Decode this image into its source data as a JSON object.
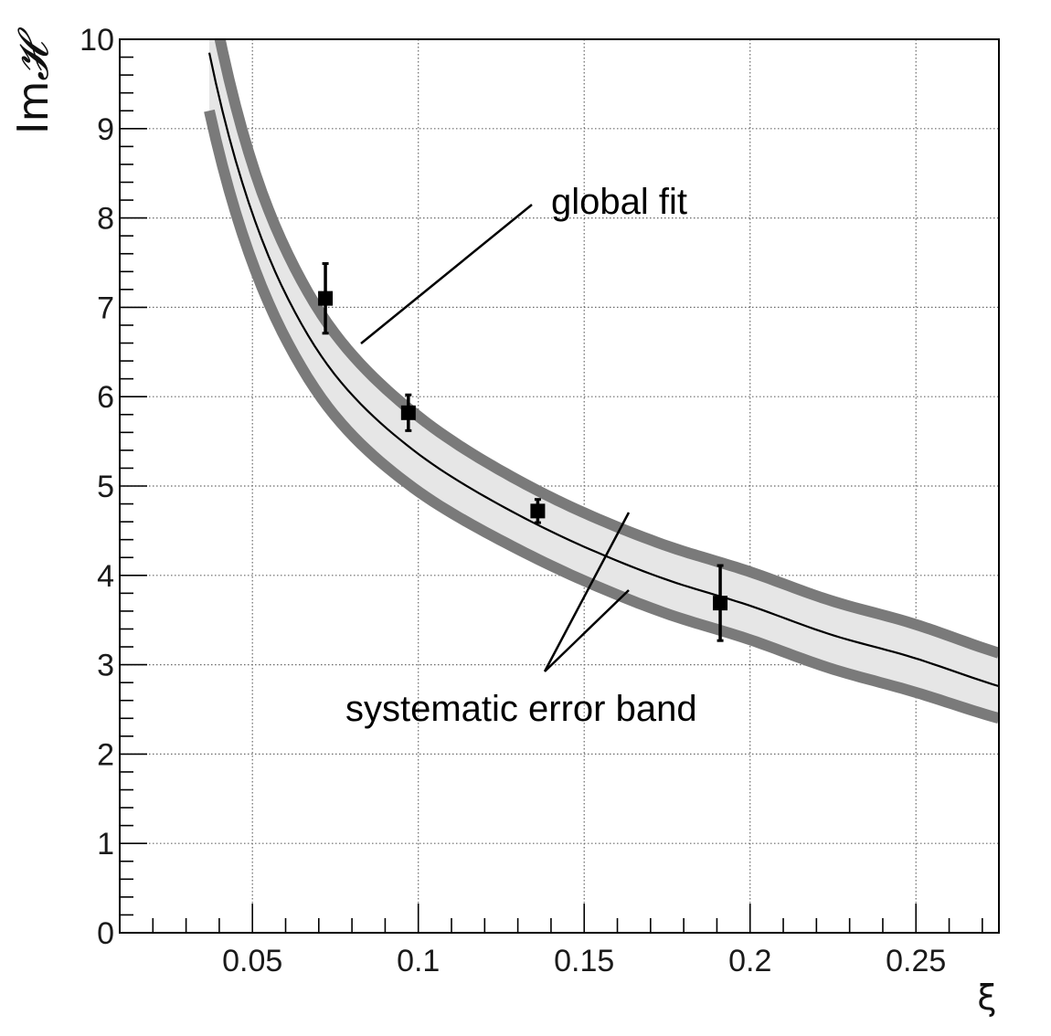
{
  "chart_data": {
    "type": "line",
    "xlabel": "ξ",
    "ylabel": "ImH",
    "ylabel_parts": {
      "prefix": "Im",
      "symbol": "𝓗"
    },
    "xlim": [
      0.01,
      0.275
    ],
    "ylim": [
      0,
      10
    ],
    "x_ticks": [
      0.05,
      0.1,
      0.15,
      0.2,
      0.25
    ],
    "x_tick_labels": [
      "0.05",
      "0.1",
      "0.15",
      "0.2",
      "0.25"
    ],
    "y_ticks": [
      0,
      1,
      2,
      3,
      4,
      5,
      6,
      7,
      8,
      9,
      10
    ],
    "y_tick_labels": [
      "0",
      "1",
      "2",
      "3",
      "4",
      "5",
      "6",
      "7",
      "8",
      "9",
      "10"
    ],
    "grid": true,
    "series": [
      {
        "name": "global fit",
        "style": "line",
        "color": "#000000",
        "x": [
          0.037,
          0.05,
          0.06,
          0.075,
          0.1,
          0.125,
          0.15,
          0.175,
          0.2,
          0.225,
          0.25,
          0.275
        ],
        "y": [
          9.85,
          8.05,
          7.15,
          6.24,
          5.36,
          4.78,
          4.32,
          3.95,
          3.66,
          3.33,
          3.07,
          2.76
        ]
      },
      {
        "name": "systematic error band",
        "style": "band",
        "fill": "#e6e6e6",
        "edge_color": "#7a7a7a",
        "x": [
          0.037,
          0.05,
          0.06,
          0.075,
          0.1,
          0.125,
          0.15,
          0.175,
          0.2,
          0.225,
          0.25,
          0.275
        ],
        "upper": [
          10.6,
          8.6,
          7.65,
          6.7,
          5.78,
          5.17,
          4.7,
          4.33,
          4.04,
          3.71,
          3.45,
          3.13
        ],
        "lower": [
          9.2,
          7.5,
          6.65,
          5.78,
          4.94,
          4.39,
          3.94,
          3.57,
          3.28,
          2.95,
          2.69,
          2.4
        ]
      },
      {
        "name": "data",
        "style": "points",
        "marker": "square",
        "color": "#000000",
        "x": [
          0.072,
          0.097,
          0.136,
          0.191
        ],
        "y": [
          7.1,
          5.82,
          4.72,
          3.69
        ],
        "yerr": [
          0.39,
          0.2,
          0.13,
          0.42
        ]
      }
    ],
    "annotations": [
      {
        "text": "global fit",
        "points_to": "global fit"
      },
      {
        "text": "systematic error band",
        "points_to": "systematic error band"
      }
    ]
  }
}
